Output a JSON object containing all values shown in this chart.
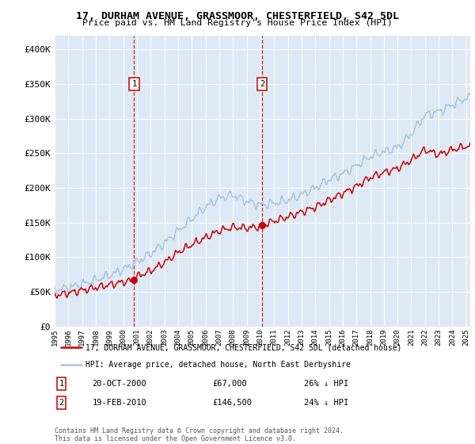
{
  "title": "17, DURHAM AVENUE, GRASSMOOR, CHESTERFIELD, S42 5DL",
  "subtitle": "Price paid vs. HM Land Registry's House Price Index (HPI)",
  "legend_label1": "17, DURHAM AVENUE, GRASSMOOR, CHESTERFIELD, S42 5DL (detached house)",
  "legend_label2": "HPI: Average price, detached house, North East Derbyshire",
  "transaction1_label": "20-OCT-2000",
  "transaction1_price": "£67,000",
  "transaction1_hpi": "26% ↓ HPI",
  "transaction2_label": "19-FEB-2010",
  "transaction2_price": "£146,500",
  "transaction2_hpi": "24% ↓ HPI",
  "footer": "Contains HM Land Registry data © Crown copyright and database right 2024.\nThis data is licensed under the Open Government Licence v3.0.",
  "ylim": [
    0,
    420000
  ],
  "yticks": [
    0,
    50000,
    100000,
    150000,
    200000,
    250000,
    300000,
    350000,
    400000
  ],
  "ytick_labels": [
    "£0",
    "£50K",
    "£100K",
    "£150K",
    "£200K",
    "£250K",
    "£300K",
    "£350K",
    "£400K"
  ],
  "hpi_color": "#a8c4de",
  "price_color": "#cc0000",
  "vline_color": "#cc0000",
  "bg_color": "#ddeaf6",
  "plot_bg": "#ffffff",
  "marker1_x": 2000.8,
  "marker1_y": 67000,
  "marker2_x": 2010.13,
  "marker2_y": 146500,
  "xlim_start": 1995,
  "xlim_end": 2025.3
}
